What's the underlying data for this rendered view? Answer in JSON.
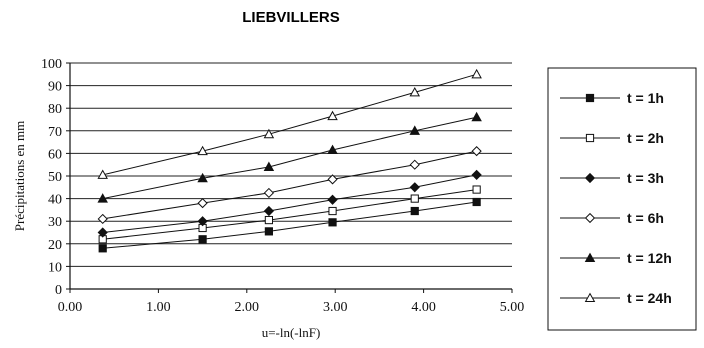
{
  "chart_data": {
    "type": "line",
    "title": "LIEBVILLERS",
    "xlabel": "u=-ln(-lnF)",
    "ylabel": "Précipitations en mm",
    "xlim": [
      0,
      5
    ],
    "ylim": [
      0,
      100
    ],
    "x_ticks": [
      "0.00",
      "1.00",
      "2.00",
      "3.00",
      "4.00",
      "5.00"
    ],
    "y_ticks": [
      "0",
      "10",
      "20",
      "30",
      "40",
      "50",
      "60",
      "70",
      "80",
      "90",
      "100"
    ],
    "grid": "horizontal",
    "legend_position": "right",
    "x": [
      0.37,
      1.5,
      2.25,
      2.97,
      3.9,
      4.6
    ],
    "series": [
      {
        "name": "t = 1h",
        "marker": "filled-square",
        "values": [
          18,
          22,
          25.5,
          29.5,
          34.5,
          38.5
        ]
      },
      {
        "name": "t = 2h",
        "marker": "open-square",
        "values": [
          22,
          27,
          30.5,
          34.5,
          40,
          44
        ]
      },
      {
        "name": "t = 3h",
        "marker": "filled-diamond",
        "values": [
          25,
          30,
          34.5,
          39.5,
          45,
          50.5
        ]
      },
      {
        "name": "t = 6h",
        "marker": "open-diamond",
        "values": [
          31,
          38,
          42.5,
          48.5,
          55,
          61
        ]
      },
      {
        "name": "t = 12h",
        "marker": "filled-triangle",
        "values": [
          40,
          49,
          54,
          61.5,
          70,
          76
        ]
      },
      {
        "name": "t = 24h",
        "marker": "open-triangle",
        "values": [
          50.5,
          61,
          68.5,
          76.5,
          87,
          95
        ]
      }
    ]
  }
}
